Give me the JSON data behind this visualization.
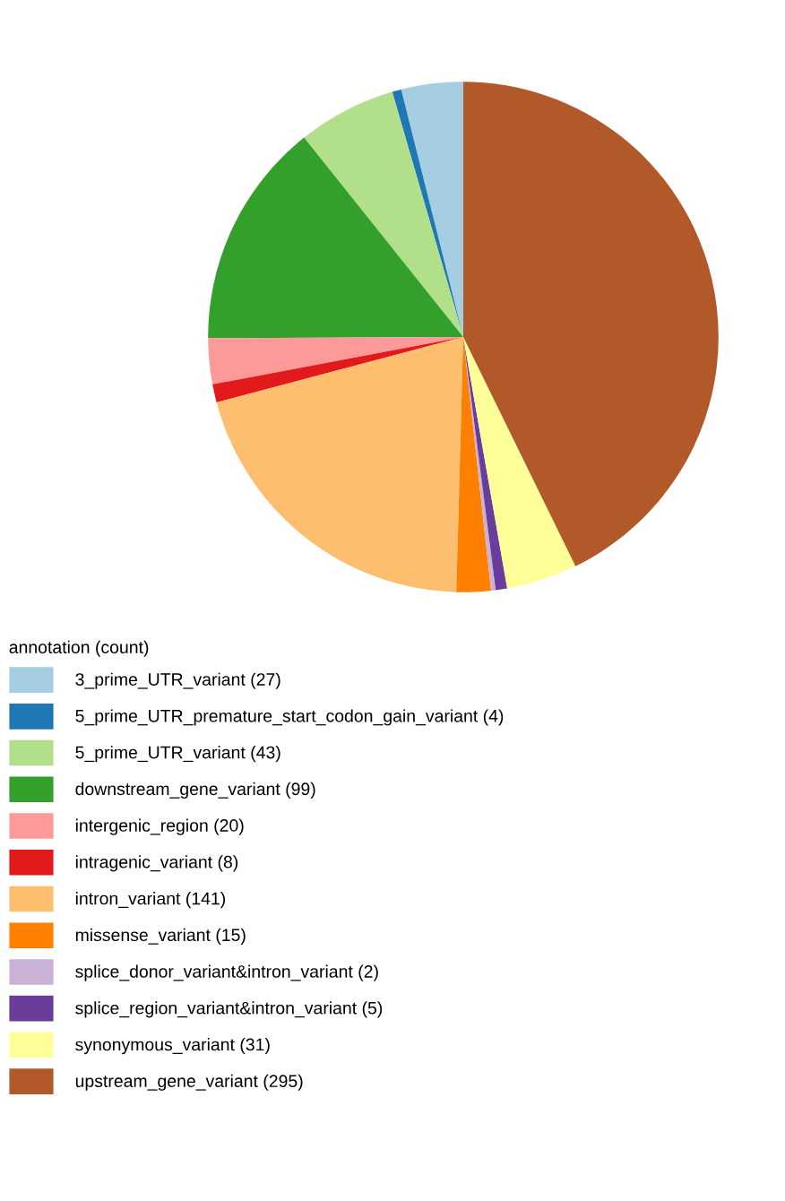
{
  "chart_data": {
    "type": "pie",
    "legend_title": "annotation (count)",
    "legend": "bottom left",
    "categories": [
      "3_prime_UTR_variant (27)",
      "5_prime_UTR_premature_start_codon_gain_variant (4)",
      "5_prime_UTR_variant (43)",
      "downstream_gene_variant (99)",
      "intergenic_region (20)",
      "intragenic_variant (8)",
      "intron_variant (141)",
      "missense_variant (15)",
      "splice_donor_variant&intron_variant (2)",
      "splice_region_variant&intron_variant (5)",
      "synonymous_variant (31)",
      "upstream_gene_variant (295)"
    ],
    "values": [
      27,
      4,
      43,
      99,
      20,
      8,
      141,
      15,
      2,
      5,
      31,
      295
    ],
    "colors": [
      "#a6cee3",
      "#1f78b4",
      "#b2df8a",
      "#33a02c",
      "#fb9a99",
      "#e31a1c",
      "#fdbf6f",
      "#ff7f00",
      "#cab2d6",
      "#6a3d9a",
      "#ffff99",
      "#b15928"
    ]
  }
}
